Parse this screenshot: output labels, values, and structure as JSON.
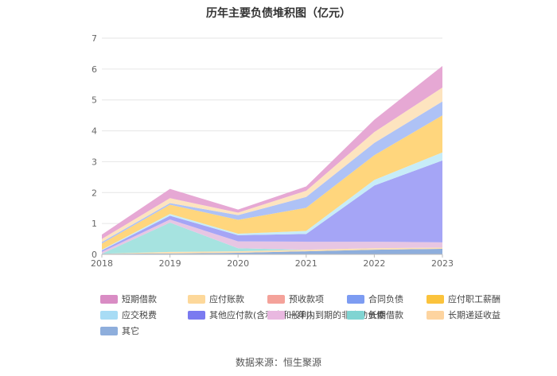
{
  "chart_data": {
    "type": "area",
    "title": "历年主要负债堆积图（亿元）",
    "x": [
      "2018",
      "2019",
      "2020",
      "2021",
      "2022",
      "2023"
    ],
    "ylim": [
      0,
      7
    ],
    "yticks": [
      "0",
      "1",
      "2",
      "3",
      "4",
      "5",
      "6",
      "7"
    ],
    "stacked": true,
    "series": [
      {
        "name": "其它",
        "color": "#8eaedc",
        "values": [
          0.02,
          0.03,
          0.05,
          0.1,
          0.15,
          0.18
        ]
      },
      {
        "name": "长期递延收益",
        "color": "#fde0b2",
        "values": [
          0.0,
          0.05,
          0.05,
          0.05,
          0.05,
          0.04
        ]
      },
      {
        "name": "长期借款",
        "color": "#a6e3e0",
        "values": [
          0.0,
          0.95,
          0.1,
          0.0,
          0.0,
          0.0
        ]
      },
      {
        "name": "一年内到期的非流动负债",
        "color": "#e7c6e3",
        "values": [
          0.06,
          0.1,
          0.22,
          0.26,
          0.21,
          0.17
        ]
      },
      {
        "name": "其他应付款(含利息和股利)",
        "color": "#a5a5f6",
        "values": [
          0.05,
          0.12,
          0.2,
          0.25,
          1.82,
          2.65
        ]
      },
      {
        "name": "应交税费",
        "color": "#c7ecf8",
        "values": [
          0.02,
          0.06,
          0.05,
          0.1,
          0.18,
          0.26
        ]
      },
      {
        "name": "应付职工薪酬",
        "color": "#ffd67d",
        "values": [
          0.2,
          0.3,
          0.45,
          0.75,
          0.8,
          1.2
        ]
      },
      {
        "name": "合同负债",
        "color": "#aec2f6",
        "values": [
          0.05,
          0.05,
          0.15,
          0.35,
          0.4,
          0.45
        ]
      },
      {
        "name": "预收款项",
        "color": "#f4aba4",
        "values": [
          0.0,
          0.0,
          0.0,
          0.0,
          0.0,
          0.0
        ]
      },
      {
        "name": "应付账款",
        "color": "#fde4bf",
        "values": [
          0.1,
          0.16,
          0.08,
          0.2,
          0.35,
          0.45
        ]
      },
      {
        "name": "短期借款",
        "color": "#e6a8d4",
        "values": [
          0.14,
          0.3,
          0.1,
          0.14,
          0.4,
          0.7
        ]
      }
    ]
  },
  "legend": {
    "items": [
      {
        "name": "短期借款",
        "color": "#d98cc4"
      },
      {
        "name": "应付账款",
        "color": "#fdd89a"
      },
      {
        "name": "预收款项",
        "color": "#f4a29a"
      },
      {
        "name": "合同负债",
        "color": "#7d9cf2"
      },
      {
        "name": "应付职工薪酬",
        "color": "#fbc33c"
      },
      {
        "name": "应交税费",
        "color": "#a8dcf5"
      },
      {
        "name": "其他应付款(含利息和股利)",
        "color": "#7a7af0"
      },
      {
        "name": "一年内到期的非流动负债",
        "color": "#e9b8e0"
      },
      {
        "name": "长期借款",
        "color": "#80d4d2"
      },
      {
        "name": "长期递延收益",
        "color": "#fdd4a0"
      },
      {
        "name": "其它",
        "color": "#8eaedc"
      }
    ]
  },
  "source": "数据来源：恒生聚源"
}
